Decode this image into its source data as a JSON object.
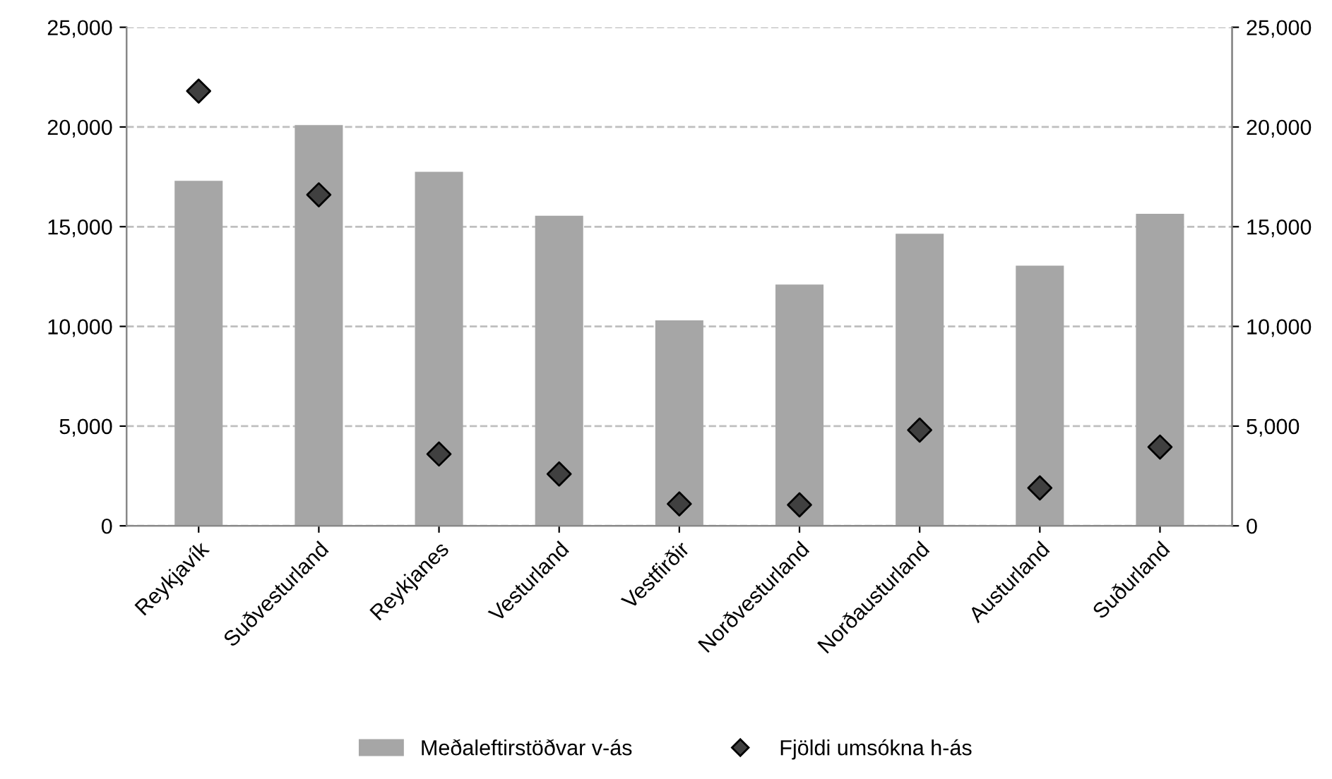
{
  "chart_data": {
    "type": "bar",
    "categories": [
      "Reykjavík",
      "Suðvesturland",
      "Reykjanes",
      "Vesturland",
      "Vestfirðir",
      "Norðvesturland",
      "Norðausturland",
      "Austurland",
      "Suðurland"
    ],
    "series": [
      {
        "name": "Meðaleftirstöðvar v-ás",
        "color": "#a6a6a6",
        "values": [
          17300,
          20100,
          17750,
          15550,
          10300,
          12100,
          14650,
          13050,
          15650
        ]
      },
      {
        "name": "Fjöldi umsókna h-ás",
        "type": "scatter",
        "axis": "y2",
        "marker": "diamond",
        "color": "#404040",
        "values": [
          21800,
          16600,
          3600,
          2600,
          1100,
          1050,
          4800,
          1900,
          3950
        ]
      }
    ],
    "ylim": [
      0,
      25000
    ],
    "yticks": [
      0,
      {
        "value": 5000,
        "label": "5,000"
      },
      {
        "value": 10000,
        "label": "10,000"
      },
      {
        "value": 15000,
        "label": "15,000"
      },
      {
        "value": 20000,
        "label": "20,000"
      },
      {
        "value": 25000,
        "label": "25,000"
      }
    ],
    "y2lim": [
      0,
      25000
    ],
    "y2ticks": [
      0,
      {
        "value": 5000,
        "label": "5,000"
      },
      {
        "value": 10000,
        "label": "10,000"
      },
      {
        "value": 15000,
        "label": "15,000"
      },
      {
        "value": 20000,
        "label": "20,000"
      },
      {
        "value": 25000,
        "label": "25,000"
      }
    ],
    "grid": "y",
    "line_style": "dashed",
    "legend": "bottom"
  }
}
